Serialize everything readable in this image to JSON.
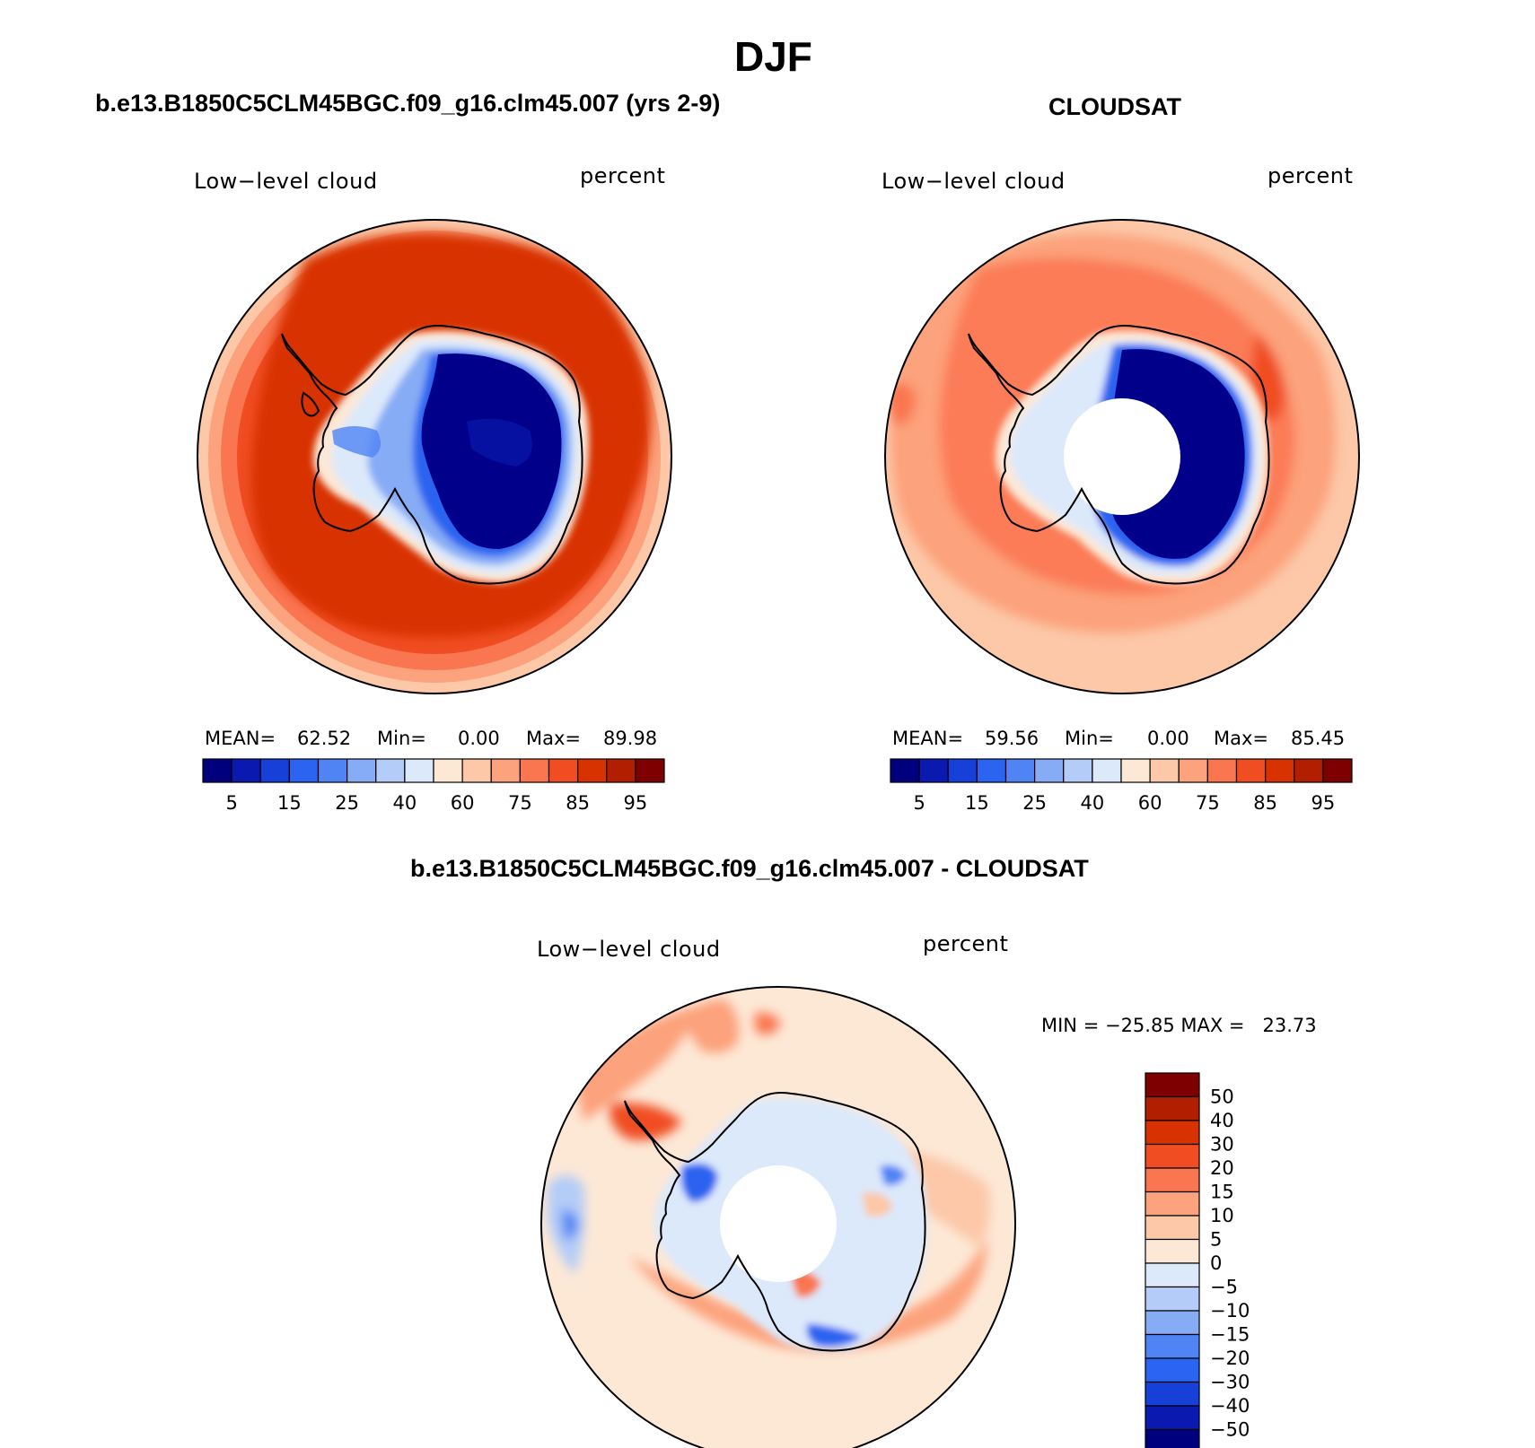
{
  "figure_title": "DJF",
  "panels": [
    {
      "title": "b.e13.B1850C5CLM45BGC.f09_g16.clm45.007 (yrs 2-9)",
      "left_label": "Low−level cloud",
      "right_label": "percent",
      "stats": {
        "mean_label": "MEAN=",
        "mean": "62.52",
        "min_label": "Min=",
        "min": "0.00",
        "max_label": "Max=",
        "max": "89.98"
      }
    },
    {
      "title": "CLOUDSAT",
      "left_label": "Low−level cloud",
      "right_label": "percent",
      "stats": {
        "mean_label": "MEAN=",
        "mean": "59.56",
        "min_label": "Min=",
        "min": "0.00",
        "max_label": "Max=",
        "max": "85.45"
      }
    },
    {
      "title": "b.e13.B1850C5CLM45BGC.f09_g16.clm45.007 - CLOUDSAT",
      "left_label": "Low−level cloud",
      "right_label": "percent",
      "stats_text": "MIN = −25.85 MAX =   23.73"
    }
  ],
  "colorbar_abs": {
    "colors": [
      "#00007f",
      "#0a1ab0",
      "#1640d8",
      "#2a64f0",
      "#5084f4",
      "#86acf6",
      "#b4ccf8",
      "#dce9fb",
      "#fde8d6",
      "#fcc8a8",
      "#fca27c",
      "#fa7650",
      "#f04d22",
      "#d83200",
      "#b21f00",
      "#7f0000"
    ],
    "tick_labels": [
      "5",
      "15",
      "25",
      "40",
      "60",
      "75",
      "85",
      "95"
    ]
  },
  "colorbar_diff": {
    "colors_top_to_bottom": [
      "#7f0000",
      "#b21f00",
      "#d83200",
      "#f04d22",
      "#fa7650",
      "#fca27c",
      "#fcc8a8",
      "#fde8d6",
      "#dce9fb",
      "#b4ccf8",
      "#86acf6",
      "#5084f4",
      "#2a64f0",
      "#1640d8",
      "#0a1ab0",
      "#00007f"
    ],
    "tick_labels": [
      "50",
      "40",
      "30",
      "20",
      "15",
      "10",
      "5",
      "0",
      "−5",
      "−10",
      "−15",
      "−20",
      "−30",
      "−40",
      "−50"
    ]
  }
}
